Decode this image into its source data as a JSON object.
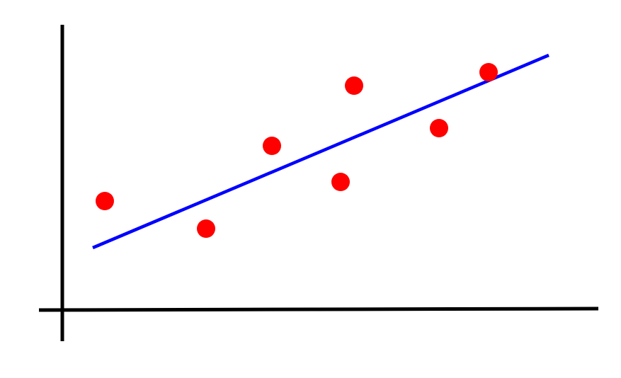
{
  "chart_data": {
    "type": "scatter",
    "title": "",
    "xlabel": "",
    "ylabel": "",
    "xlim": [
      -0.33,
      7.57
    ],
    "ylim": [
      -0.44,
      4.03
    ],
    "grid": false,
    "legend": "none",
    "points": {
      "color": "#ff0000",
      "x": [
        0.6,
        2.03,
        2.96,
        3.93,
        4.12,
        5.32,
        6.02
      ],
      "y": [
        1.54,
        1.15,
        2.32,
        1.81,
        3.17,
        2.57,
        3.36
      ]
    },
    "trend_line": {
      "color": "#0000ff",
      "x": [
        0.43,
        6.87
      ],
      "y": [
        0.88,
        3.6
      ]
    },
    "axis_color": "#000000"
  }
}
